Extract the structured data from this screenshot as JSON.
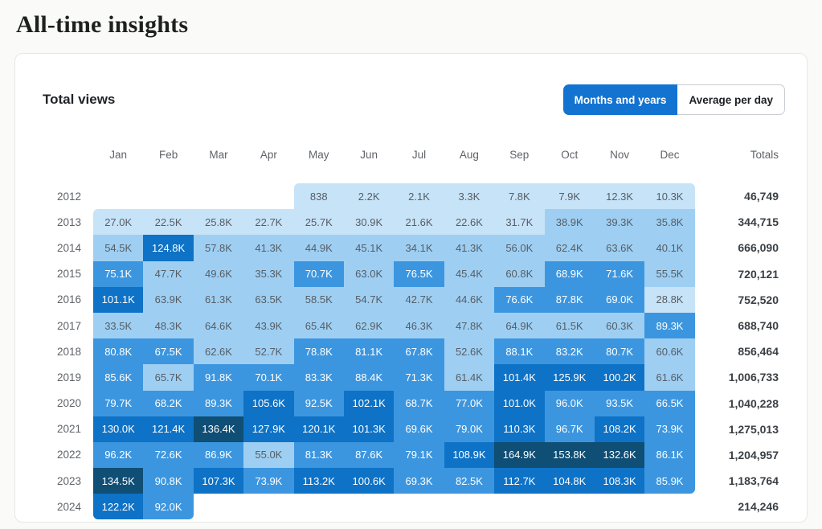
{
  "page": {
    "title": "All-time insights"
  },
  "card": {
    "heading": "Total views",
    "toggle": {
      "active_color": "#1373d1",
      "options": [
        {
          "label": "Months and years",
          "active": true
        },
        {
          "label": "Average per day",
          "active": false
        }
      ]
    }
  },
  "chart_data": {
    "type": "heatmap",
    "columns": [
      "Jan",
      "Feb",
      "Mar",
      "Apr",
      "May",
      "Jun",
      "Jul",
      "Aug",
      "Sep",
      "Oct",
      "Nov",
      "Dec"
    ],
    "totals_label": "Totals",
    "rows": [
      {
        "year": "2012",
        "values": [
          null,
          null,
          null,
          null,
          "838",
          "2.2K",
          "2.1K",
          "3.3K",
          "7.8K",
          "7.9K",
          "12.3K",
          "10.3K"
        ],
        "total": "46,749"
      },
      {
        "year": "2013",
        "values": [
          "27.0K",
          "22.5K",
          "25.8K",
          "22.7K",
          "25.7K",
          "30.9K",
          "21.6K",
          "22.6K",
          "31.7K",
          "38.9K",
          "39.3K",
          "35.8K"
        ],
        "total": "344,715"
      },
      {
        "year": "2014",
        "values": [
          "54.5K",
          "124.8K",
          "57.8K",
          "41.3K",
          "44.9K",
          "45.1K",
          "34.1K",
          "41.3K",
          "56.0K",
          "62.4K",
          "63.6K",
          "40.1K"
        ],
        "total": "666,090"
      },
      {
        "year": "2015",
        "values": [
          "75.1K",
          "47.7K",
          "49.6K",
          "35.3K",
          "70.7K",
          "63.0K",
          "76.5K",
          "45.4K",
          "60.8K",
          "68.9K",
          "71.6K",
          "55.5K"
        ],
        "total": "720,121"
      },
      {
        "year": "2016",
        "values": [
          "101.1K",
          "63.9K",
          "61.3K",
          "63.5K",
          "58.5K",
          "54.7K",
          "42.7K",
          "44.6K",
          "76.6K",
          "87.8K",
          "69.0K",
          "28.8K"
        ],
        "total": "752,520"
      },
      {
        "year": "2017",
        "values": [
          "33.5K",
          "48.3K",
          "64.6K",
          "43.9K",
          "65.4K",
          "62.9K",
          "46.3K",
          "47.8K",
          "64.9K",
          "61.5K",
          "60.3K",
          "89.3K"
        ],
        "total": "688,740"
      },
      {
        "year": "2018",
        "values": [
          "80.8K",
          "67.5K",
          "62.6K",
          "52.7K",
          "78.8K",
          "81.1K",
          "67.8K",
          "52.6K",
          "88.1K",
          "83.2K",
          "80.7K",
          "60.6K"
        ],
        "total": "856,464"
      },
      {
        "year": "2019",
        "values": [
          "85.6K",
          "65.7K",
          "91.8K",
          "70.1K",
          "83.3K",
          "88.4K",
          "71.3K",
          "61.4K",
          "101.4K",
          "125.9K",
          "100.2K",
          "61.6K"
        ],
        "total": "1,006,733"
      },
      {
        "year": "2020",
        "values": [
          "79.7K",
          "68.2K",
          "89.3K",
          "105.6K",
          "92.5K",
          "102.1K",
          "68.7K",
          "77.0K",
          "101.0K",
          "96.0K",
          "93.5K",
          "66.5K"
        ],
        "total": "1,040,228"
      },
      {
        "year": "2021",
        "values": [
          "130.0K",
          "121.4K",
          "136.4K",
          "127.9K",
          "120.1K",
          "101.3K",
          "69.6K",
          "79.0K",
          "110.3K",
          "96.7K",
          "108.2K",
          "73.9K"
        ],
        "total": "1,275,013"
      },
      {
        "year": "2022",
        "values": [
          "96.2K",
          "72.6K",
          "86.9K",
          "55.0K",
          "81.3K",
          "87.6K",
          "79.1K",
          "108.9K",
          "164.9K",
          "153.8K",
          "132.6K",
          "86.1K"
        ],
        "total": "1,204,957"
      },
      {
        "year": "2023",
        "values": [
          "134.5K",
          "90.8K",
          "107.3K",
          "73.9K",
          "113.2K",
          "100.6K",
          "69.3K",
          "82.5K",
          "112.7K",
          "104.8K",
          "108.3K",
          "85.9K"
        ],
        "total": "1,183,764"
      },
      {
        "year": "2024",
        "values": [
          "122.2K",
          "92.0K",
          null,
          null,
          null,
          null,
          null,
          null,
          null,
          null,
          null,
          null
        ],
        "total": "214,246"
      }
    ],
    "color_scale": {
      "thresholds": [
        33000,
        66000,
        99000,
        132000
      ],
      "bin_colors": [
        "#c7e3f8",
        "#9ecff3",
        "#3c96df",
        "#0e72c6",
        "#0f4e75"
      ],
      "dark_text": "#565d64",
      "light_text": "#ffffff"
    }
  }
}
